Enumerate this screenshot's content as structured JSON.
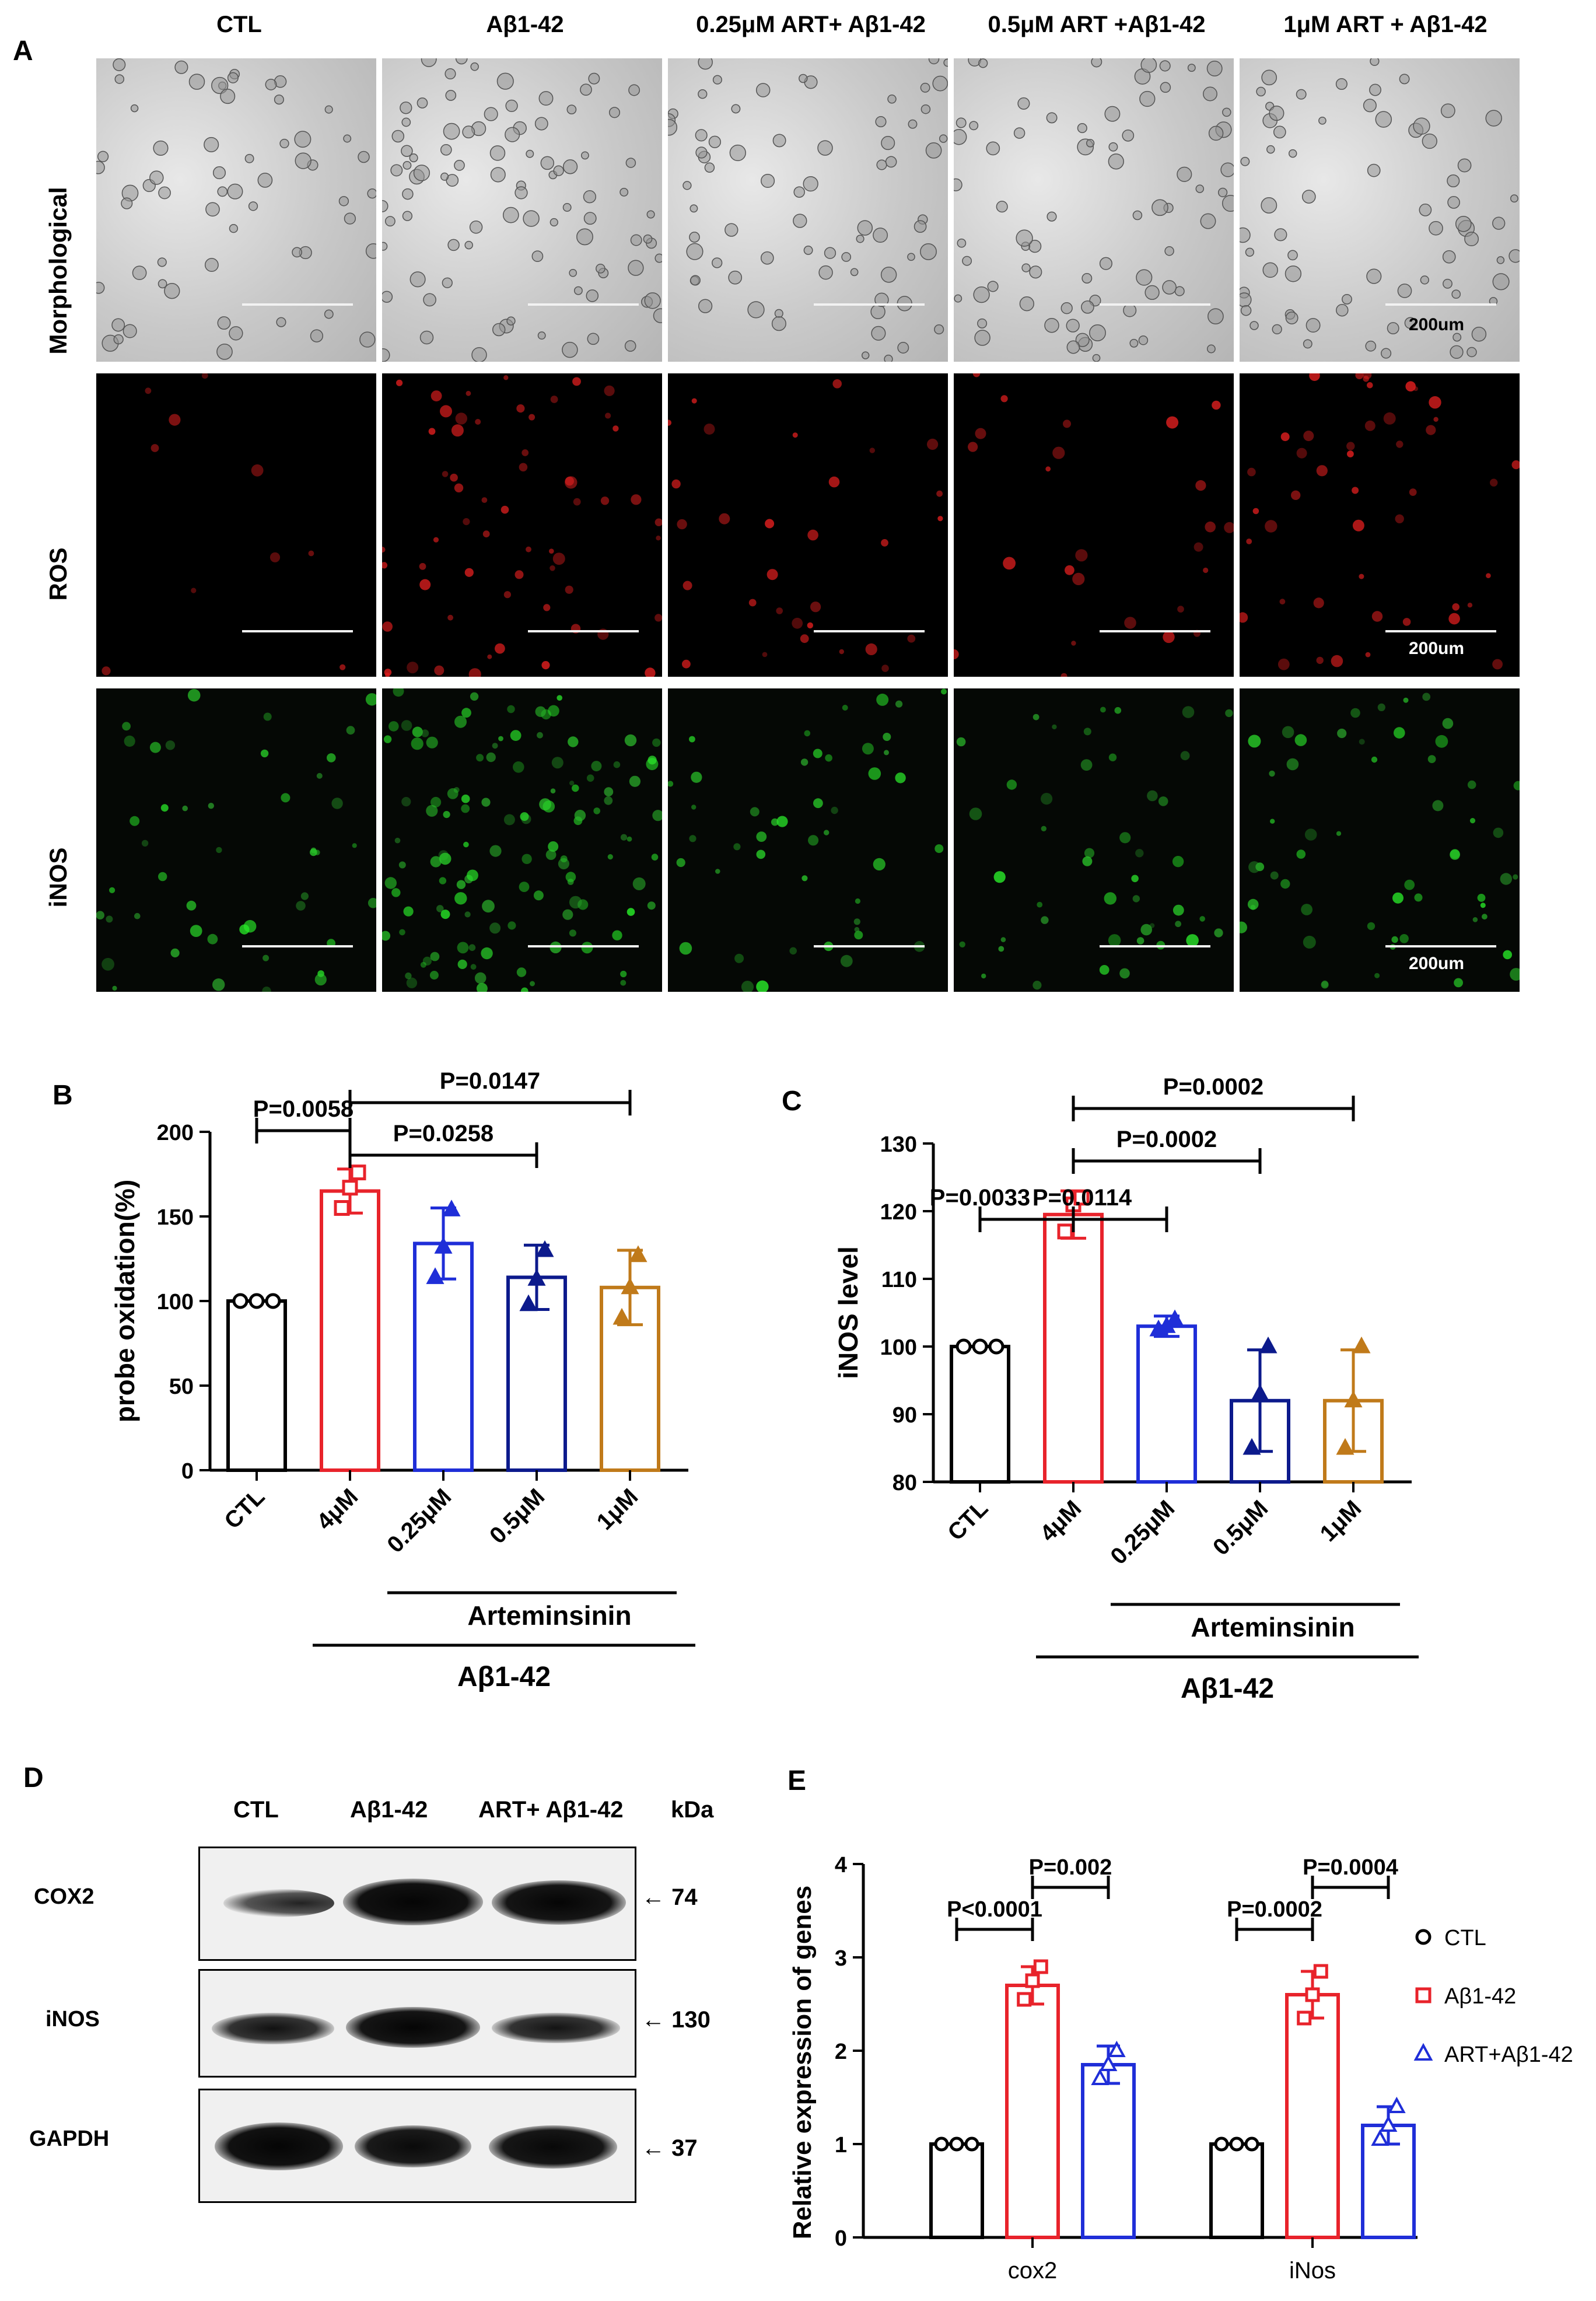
{
  "panel_labels": {
    "a": "A",
    "b": "B",
    "c": "C",
    "d": "D",
    "e": "E"
  },
  "panel_a": {
    "columns": [
      "CTL",
      "Aβ1-42",
      "0.25μM ART+ Aβ1-42",
      "0.5μM ART +Aβ1-42",
      "1μM ART + Aβ1-42"
    ],
    "rows": [
      "Morphological",
      "ROS",
      "iNOS"
    ],
    "scale_label": "200um"
  },
  "chart_data": [
    {
      "type": "bar",
      "panel": "B",
      "ylabel": "probe oxidation(%)",
      "categories": [
        "CTL",
        "4μM",
        "0.25μM",
        "0.5μM",
        "1μM"
      ],
      "values": [
        100,
        165,
        134,
        114,
        108
      ],
      "error": [
        0,
        13,
        21,
        19,
        22
      ],
      "points": [
        [
          100,
          100,
          100
        ],
        [
          155,
          167,
          176
        ],
        [
          114,
          132,
          154
        ],
        [
          98,
          113,
          130
        ],
        [
          90,
          108,
          127
        ]
      ],
      "colors": [
        "#000000",
        "#e8232b",
        "#1f2ed8",
        "#0c1a8c",
        "#c07a1a"
      ],
      "ylim": [
        0,
        200
      ],
      "yticks": [
        0,
        50,
        100,
        150,
        200
      ],
      "sublabel_1": "Arteminsinin",
      "sublabel_2": "Aβ1-42",
      "comparisons": [
        "P=0.0058",
        "P=0.0258",
        "P=0.0147"
      ]
    },
    {
      "type": "bar",
      "panel": "C",
      "ylabel": "iNOS level",
      "categories": [
        "CTL",
        "4μM",
        "0.25μM",
        "0.5μM",
        "1μM"
      ],
      "values": [
        100,
        119.5,
        103,
        92,
        92
      ],
      "error": [
        0,
        3.5,
        1.5,
        7.5,
        7.5
      ],
      "points": [
        [
          100,
          100,
          100
        ],
        [
          117,
          121,
          122
        ],
        [
          102.5,
          103,
          104
        ],
        [
          85,
          93,
          100
        ],
        [
          85,
          92,
          100
        ]
      ],
      "colors": [
        "#000000",
        "#e8232b",
        "#1f2ed8",
        "#0c1a8c",
        "#c07a1a"
      ],
      "ylim": [
        80,
        130
      ],
      "yticks": [
        80,
        90,
        100,
        110,
        120,
        130
      ],
      "sublabel_1": "Arteminsinin",
      "sublabel_2": "Aβ1-42",
      "comparisons": [
        "P=0.0033",
        "P=0.0114",
        "P=0.0002",
        "P=0.0002"
      ]
    },
    {
      "type": "bar",
      "panel": "E",
      "ylabel": "Relative expression of genes",
      "categories": [
        "cox2",
        "iNos"
      ],
      "series": [
        {
          "name": "CTL",
          "values": [
            1,
            1
          ],
          "error": [
            0,
            0
          ],
          "points": [
            [
              1,
              1,
              1
            ],
            [
              1,
              1,
              1
            ]
          ],
          "color": "#000000",
          "marker": "circle"
        },
        {
          "name": "Aβ1-42",
          "values": [
            2.7,
            2.6
          ],
          "error": [
            0.2,
            0.25
          ],
          "points": [
            [
              2.55,
              2.75,
              2.9
            ],
            [
              2.35,
              2.6,
              2.85
            ]
          ],
          "color": "#e8232b",
          "marker": "square"
        },
        {
          "name": "ART+Aβ1-42",
          "values": [
            1.85,
            1.2
          ],
          "error": [
            0.2,
            0.2
          ],
          "points": [
            [
              1.7,
              1.85,
              2.0
            ],
            [
              1.05,
              1.2,
              1.4
            ]
          ],
          "color": "#1f2ed8",
          "marker": "triangle"
        }
      ],
      "ylim": [
        0,
        4
      ],
      "yticks": [
        0,
        1,
        2,
        3,
        4
      ],
      "comparisons": [
        "P<0.0001",
        "P=0.002",
        "P=0.0002",
        "P=0.0004"
      ]
    }
  ],
  "panel_d": {
    "lanes": [
      "CTL",
      "Aβ1-42",
      "ART+ Aβ1-42"
    ],
    "kda_label": "kDa",
    "blots": [
      {
        "name": "COX2",
        "kda": "74"
      },
      {
        "name": "iNOS",
        "kda": "130"
      },
      {
        "name": "GAPDH",
        "kda": "37"
      }
    ]
  }
}
